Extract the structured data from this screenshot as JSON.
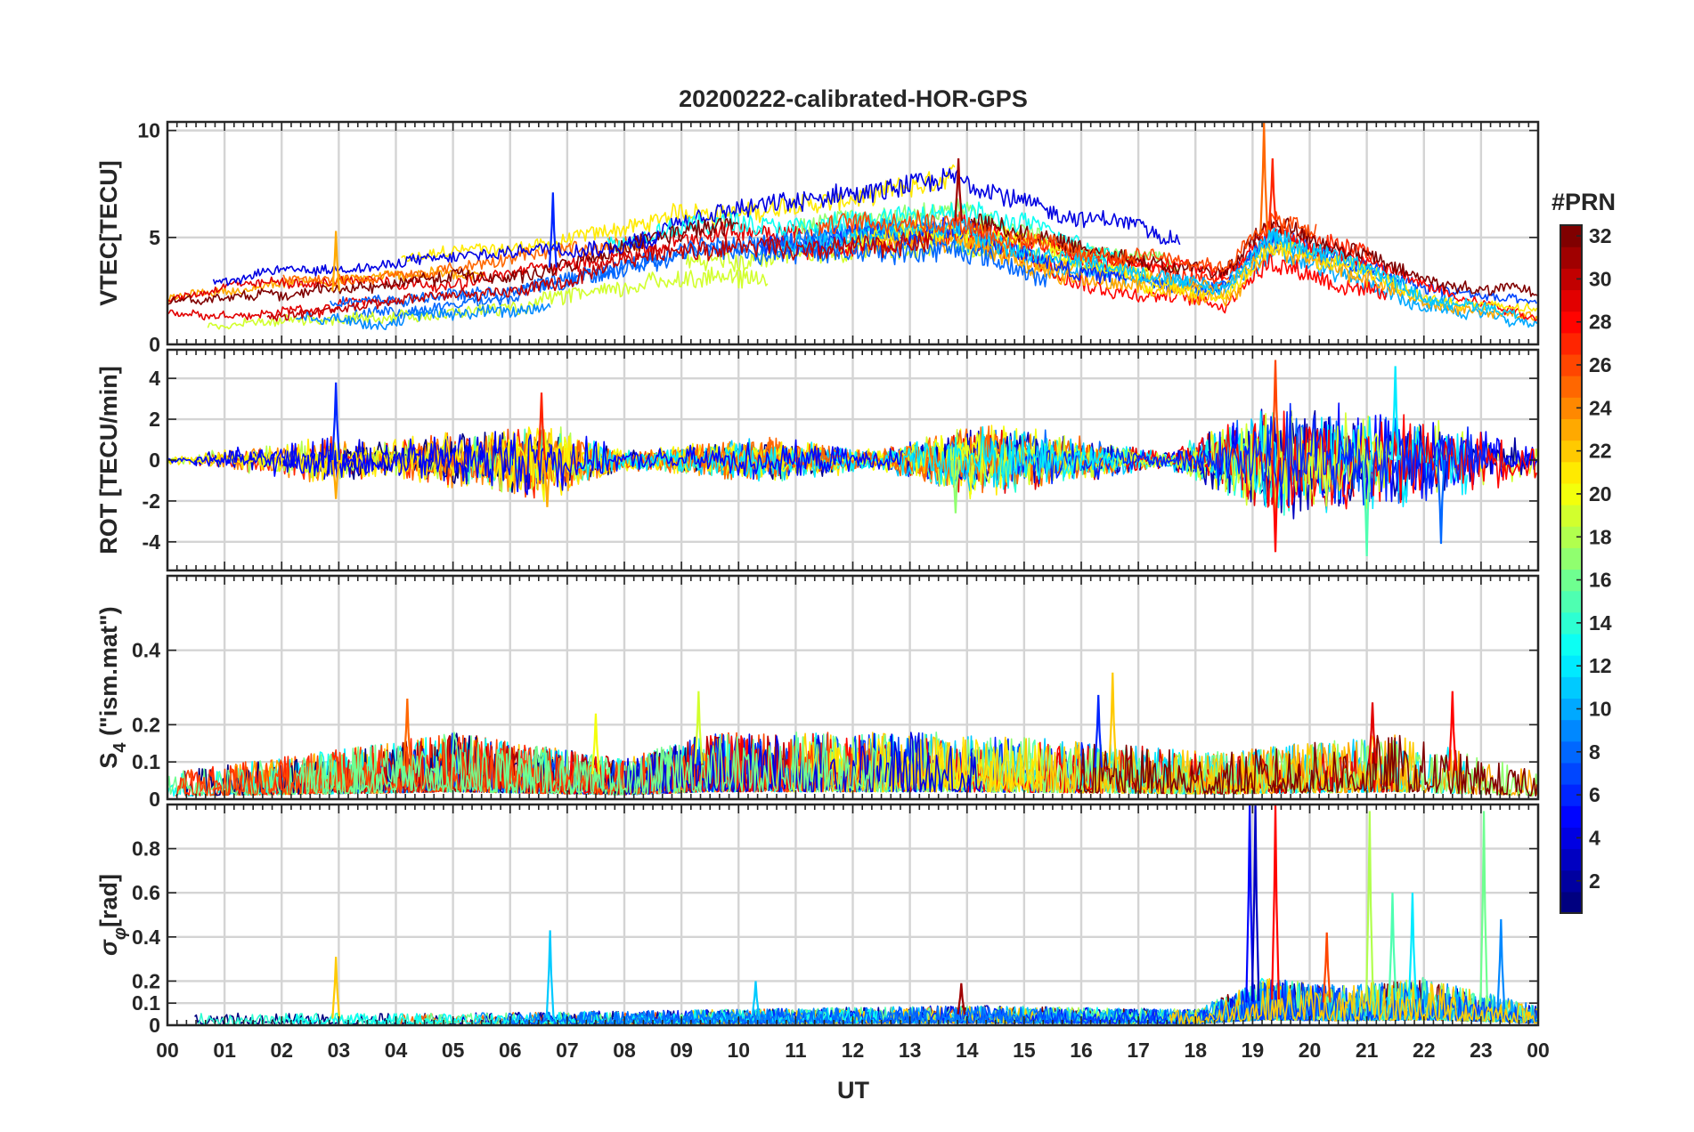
{
  "chart_data": {
    "type": "line",
    "title": "20200222-calibrated-HOR-GPS",
    "xlabel": "UT",
    "xlim": [
      0,
      24
    ],
    "x_tick_labels": [
      "00",
      "01",
      "02",
      "03",
      "04",
      "05",
      "06",
      "07",
      "08",
      "09",
      "10",
      "11",
      "12",
      "13",
      "14",
      "15",
      "16",
      "17",
      "18",
      "19",
      "20",
      "21",
      "22",
      "23",
      "00"
    ],
    "colorbar": {
      "label": "#PRN",
      "range": [
        1,
        32
      ],
      "tick_labels": [
        "2",
        "4",
        "6",
        "8",
        "10",
        "12",
        "14",
        "16",
        "18",
        "20",
        "22",
        "24",
        "26",
        "28",
        "30",
        "32"
      ],
      "colormap": "jet"
    },
    "panels": [
      {
        "name": "vtec",
        "ylabel": "VTEC[TECU]",
        "ylim": [
          0,
          10.4
        ],
        "y_ticks": [
          0,
          5,
          10
        ],
        "y_tick_labels": [
          "0",
          "5",
          "10"
        ],
        "series_kind": "tec",
        "activity": [
          {
            "x": 0,
            "y": 1.6
          },
          {
            "x": 3,
            "y": 2.5
          },
          {
            "x": 6,
            "y": 3.2
          },
          {
            "x": 9,
            "y": 4.8
          },
          {
            "x": 11,
            "y": 5.2
          },
          {
            "x": 13.8,
            "y": 5.8
          },
          {
            "x": 16,
            "y": 4.2
          },
          {
            "x": 18.5,
            "y": 3.2
          },
          {
            "x": 19.3,
            "y": 5.5
          },
          {
            "x": 21,
            "y": 4.2
          },
          {
            "x": 22,
            "y": 3.0
          },
          {
            "x": 24,
            "y": 2.2
          }
        ],
        "peaks": [
          {
            "x": 2.95,
            "y": 5.3,
            "prn": 23
          },
          {
            "x": 6.75,
            "y": 7.1,
            "prn": 6
          },
          {
            "x": 13.85,
            "y": 8.7,
            "prn": 31
          },
          {
            "x": 19.2,
            "y": 10.4,
            "prn": 25
          },
          {
            "x": 19.35,
            "y": 8.7,
            "prn": 27
          }
        ]
      },
      {
        "name": "rot",
        "ylabel": "ROT [TECU/min]",
        "ylim": [
          -5.4,
          5.4
        ],
        "y_ticks": [
          -4,
          -2,
          0,
          2,
          4
        ],
        "y_tick_labels": [
          "-4",
          "-2",
          "0",
          "2",
          "4"
        ],
        "series_kind": "noise",
        "activity": [
          {
            "x": 0,
            "y": 0.15
          },
          {
            "x": 2.9,
            "y": 1.0
          },
          {
            "x": 3.6,
            "y": 0.7
          },
          {
            "x": 5.1,
            "y": 1.2
          },
          {
            "x": 6.6,
            "y": 1.6
          },
          {
            "x": 8,
            "y": 0.4
          },
          {
            "x": 10.5,
            "y": 0.9
          },
          {
            "x": 12.5,
            "y": 0.4
          },
          {
            "x": 14.2,
            "y": 1.6
          },
          {
            "x": 16,
            "y": 0.9
          },
          {
            "x": 17.5,
            "y": 0.3
          },
          {
            "x": 19.4,
            "y": 2.4
          },
          {
            "x": 21.5,
            "y": 2.0
          },
          {
            "x": 24,
            "y": 0.8
          }
        ],
        "peaks": [
          {
            "x": 2.95,
            "y": 3.8,
            "prn": 6
          },
          {
            "x": 2.95,
            "y": -1.9,
            "prn": 23
          },
          {
            "x": 6.55,
            "y": 3.3,
            "prn": 27
          },
          {
            "x": 6.65,
            "y": -2.3,
            "prn": 23
          },
          {
            "x": 13.8,
            "y": -2.6,
            "prn": 17
          },
          {
            "x": 19.4,
            "y": 4.9,
            "prn": 26
          },
          {
            "x": 19.4,
            "y": -4.5,
            "prn": 28
          },
          {
            "x": 21.5,
            "y": 4.6,
            "prn": 12
          },
          {
            "x": 21.0,
            "y": -4.7,
            "prn": 15
          },
          {
            "x": 22.3,
            "y": -4.1,
            "prn": 8
          }
        ]
      },
      {
        "name": "s4",
        "ylabel": "S_4 (\"ism.mat\")",
        "ylim": [
          0,
          0.6
        ],
        "y_ticks": [
          0,
          0.1,
          0.2,
          0.4
        ],
        "y_tick_labels": [
          "0",
          "0.1",
          "0.2",
          "0.4"
        ],
        "series_kind": "positive",
        "activity": [
          {
            "x": 0,
            "y": 0.04
          },
          {
            "x": 3.5,
            "y": 0.08
          },
          {
            "x": 5.0,
            "y": 0.1
          },
          {
            "x": 8.0,
            "y": 0.06
          },
          {
            "x": 9.5,
            "y": 0.1
          },
          {
            "x": 13.5,
            "y": 0.1
          },
          {
            "x": 15.5,
            "y": 0.09
          },
          {
            "x": 18.5,
            "y": 0.07
          },
          {
            "x": 21.5,
            "y": 0.1
          },
          {
            "x": 24,
            "y": 0.04
          }
        ],
        "peaks": [
          {
            "x": 4.2,
            "y": 0.27,
            "prn": 25
          },
          {
            "x": 7.5,
            "y": 0.23,
            "prn": 20
          },
          {
            "x": 9.3,
            "y": 0.29,
            "prn": 19
          },
          {
            "x": 16.55,
            "y": 0.34,
            "prn": 22
          },
          {
            "x": 16.3,
            "y": 0.28,
            "prn": 6
          },
          {
            "x": 21.1,
            "y": 0.26,
            "prn": 29
          },
          {
            "x": 22.5,
            "y": 0.29,
            "prn": 28
          }
        ]
      },
      {
        "name": "sigma_phi",
        "ylabel": "σ_φ[rad]",
        "ylim": [
          0,
          1.0
        ],
        "y_ticks": [
          0,
          0.1,
          0.2,
          0.4,
          0.6,
          0.8
        ],
        "y_tick_labels": [
          "0",
          "0.1",
          "0.2",
          "0.4",
          "0.6",
          "0.8"
        ],
        "series_kind": "positive",
        "activity": [
          {
            "x": 0,
            "y": 0.03
          },
          {
            "x": 5,
            "y": 0.03
          },
          {
            "x": 10,
            "y": 0.04
          },
          {
            "x": 14,
            "y": 0.05
          },
          {
            "x": 18,
            "y": 0.04
          },
          {
            "x": 19.2,
            "y": 0.12
          },
          {
            "x": 20.5,
            "y": 0.1
          },
          {
            "x": 22,
            "y": 0.12
          },
          {
            "x": 24,
            "y": 0.05
          }
        ],
        "peaks": [
          {
            "x": 2.95,
            "y": 0.31,
            "prn": 22
          },
          {
            "x": 6.7,
            "y": 0.43,
            "prn": 11
          },
          {
            "x": 10.3,
            "y": 0.2,
            "prn": 11
          },
          {
            "x": 13.9,
            "y": 0.19,
            "prn": 31
          },
          {
            "x": 18.95,
            "y": 1.0,
            "prn": 5
          },
          {
            "x": 19.05,
            "y": 1.0,
            "prn": 3
          },
          {
            "x": 19.4,
            "y": 1.0,
            "prn": 28
          },
          {
            "x": 21.05,
            "y": 0.97,
            "prn": 18
          },
          {
            "x": 21.45,
            "y": 0.6,
            "prn": 15
          },
          {
            "x": 21.8,
            "y": 0.6,
            "prn": 12
          },
          {
            "x": 23.05,
            "y": 0.97,
            "prn": 16
          },
          {
            "x": 23.35,
            "y": 0.48,
            "prn": 9
          },
          {
            "x": 20.3,
            "y": 0.42,
            "prn": 26
          }
        ]
      }
    ]
  }
}
